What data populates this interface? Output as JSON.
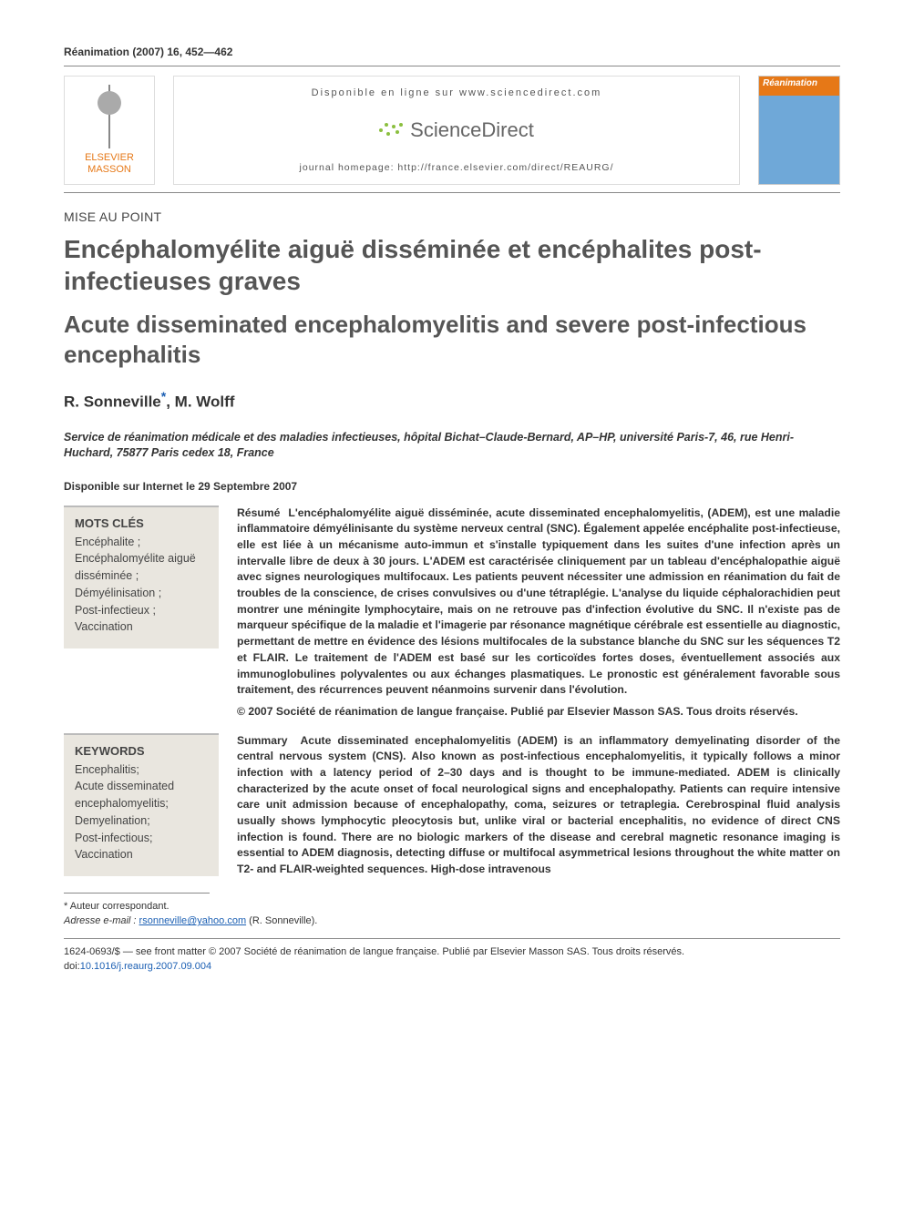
{
  "citation": "Réanimation (2007) 16, 452—462",
  "header": {
    "publisher": {
      "line1": "ELSEVIER",
      "line2": "MASSON"
    },
    "available_online": "Disponible en ligne sur www.sciencedirect.com",
    "sd_brand": "ScienceDirect",
    "homepage": "journal homepage: http://france.elsevier.com/direct/REAURG/",
    "cover_title": "Réanimation"
  },
  "article_type": "MISE AU POINT",
  "title_fr": "Encéphalomyélite aiguë disséminée et encéphalites post-infectieuses graves",
  "title_en": "Acute disseminated encephalomyelitis and severe post-infectious encephalitis",
  "authors_html": "R. Sonneville*, M. Wolff",
  "author1": "R. Sonneville",
  "author2": "M. Wolff",
  "corr_symbol": "*",
  "affiliation": "Service de réanimation médicale et des maladies infectieuses, hôpital Bichat–Claude-Bernard, AP–HP, université Paris-7, 46, rue Henri-Huchard, 75877 Paris cedex 18, France",
  "pubdate": "Disponible sur Internet le 29 Septembre 2007",
  "mots_cles": {
    "head": "MOTS CLÉS",
    "list": "Encéphalite ;\nEncéphalomyélite aiguë disséminée ;\nDémyélinisation ;\nPost-infectieux ;\nVaccination"
  },
  "resume": {
    "lead": "Résumé",
    "body": "L'encéphalomyélite aiguë disséminée, acute disseminated encephalomyelitis, (ADEM), est une maladie inflammatoire démyélinisante du système nerveux central (SNC). Également appelée encéphalite post-infectieuse, elle est liée à un mécanisme auto-immun et s'installe typiquement dans les suites d'une infection après un intervalle libre de deux à 30 jours. L'ADEM est caractérisée cliniquement par un tableau d'encéphalopathie aiguë avec signes neurologiques multifocaux. Les patients peuvent nécessiter une admission en réanimation du fait de troubles de la conscience, de crises convulsives ou d'une tétraplégie. L'analyse du liquide céphalorachidien peut montrer une méningite lymphocytaire, mais on ne retrouve pas d'infection évolutive du SNC. Il n'existe pas de marqueur spécifique de la maladie et l'imagerie par résonance magnétique cérébrale est essentielle au diagnostic, permettant de mettre en évidence des lésions multifocales de la substance blanche du SNC sur les séquences T2 et FLAIR. Le traitement de l'ADEM est basé sur les corticoïdes fortes doses, éventuellement associés aux immunoglobulines polyvalentes ou aux échanges plasmatiques. Le pronostic est généralement favorable sous traitement, des récurrences peuvent néanmoins survenir dans l'évolution.",
    "copyright": "© 2007 Société de réanimation de langue française. Publié par Elsevier Masson SAS. Tous droits réservés."
  },
  "keywords": {
    "head": "KEYWORDS",
    "list": "Encephalitis;\nAcute disseminated encephalomyelitis;\nDemyelination;\nPost-infectious;\nVaccination"
  },
  "summary": {
    "lead": "Summary",
    "body": "Acute disseminated encephalomyelitis (ADEM) is an inflammatory demyelinating disorder of the central nervous system (CNS). Also known as post-infectious encephalomyelitis, it typically follows a minor infection with a latency period of 2–30 days and is thought to be immune-mediated. ADEM is clinically characterized by the acute onset of focal neurological signs and encephalopathy. Patients can require intensive care unit admission because of encephalopathy, coma, seizures or tetraplegia. Cerebrospinal fluid analysis usually shows lymphocytic pleocytosis but, unlike viral or bacterial encephalitis, no evidence of direct CNS infection is found. There are no biologic markers of the disease and cerebral magnetic resonance imaging is essential to ADEM diagnosis, detecting diffuse or multifocal asymmetrical lesions throughout the white matter on T2- and FLAIR-weighted sequences. High-dose intravenous"
  },
  "footnote": {
    "corr": "* Auteur correspondant.",
    "email_label": "Adresse e-mail :",
    "email": "rsonneville@yahoo.com",
    "email_name": "(R. Sonneville)."
  },
  "bottom": {
    "line1": "1624-0693/$ — see front matter © 2007 Société de réanimation de langue française. Publié par Elsevier Masson SAS. Tous droits réservés.",
    "doi_label": "doi:",
    "doi": "10.1016/j.reaurg.2007.09.004"
  },
  "colors": {
    "orange": "#e67817",
    "blue_link": "#1b5fb3",
    "kw_bg": "#e9e6df",
    "text_gray": "#555555"
  }
}
